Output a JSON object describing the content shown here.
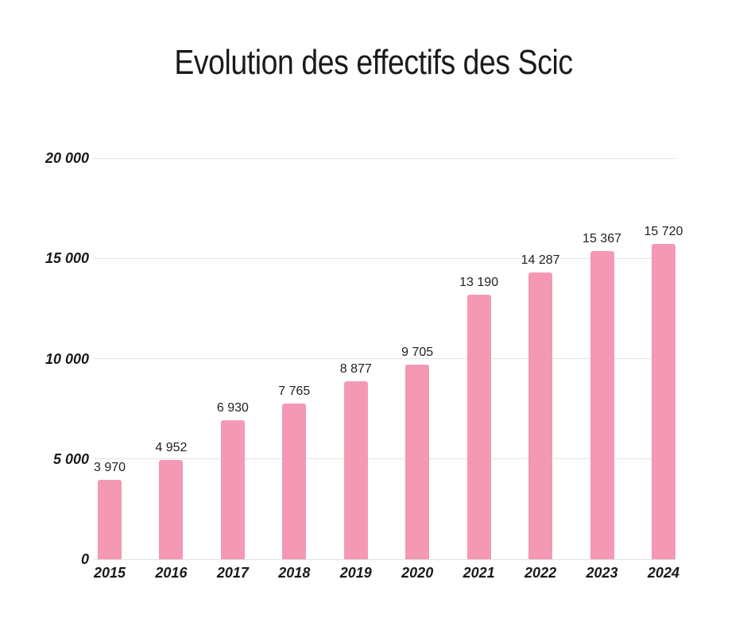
{
  "title": "Evolution des effectifs des Scic",
  "colors": {
    "bar": "#f498b4",
    "grid": "#e4e4e4",
    "axis_line": "#e0e0e0",
    "text": "#1a1a1a",
    "background": "#ffffff"
  },
  "chart_data": {
    "type": "bar",
    "title": "Evolution des effectifs des Scic",
    "categories": [
      "2015",
      "2016",
      "2017",
      "2018",
      "2019",
      "2020",
      "2021",
      "2022",
      "2023",
      "2024"
    ],
    "values": [
      3970,
      4952,
      6930,
      7765,
      8877,
      9705,
      13190,
      14287,
      15367,
      15720
    ],
    "value_labels": [
      "3 970",
      "4 952",
      "6 930",
      "7 765",
      "8 877",
      "9 705",
      "13 190",
      "14 287",
      "15 367",
      "15 720"
    ],
    "xlabel": "",
    "ylabel": "",
    "ylim": [
      0,
      20000
    ],
    "yticks": [
      0,
      5000,
      10000,
      15000,
      20000
    ],
    "ytick_labels": [
      "0",
      "5 000",
      "10 000",
      "15 000",
      "20 000"
    ],
    "grid": true,
    "legend": false,
    "bar_color": "#f498b4",
    "value_label_position": "above-bar",
    "tick_label_style": "bold-italic"
  }
}
